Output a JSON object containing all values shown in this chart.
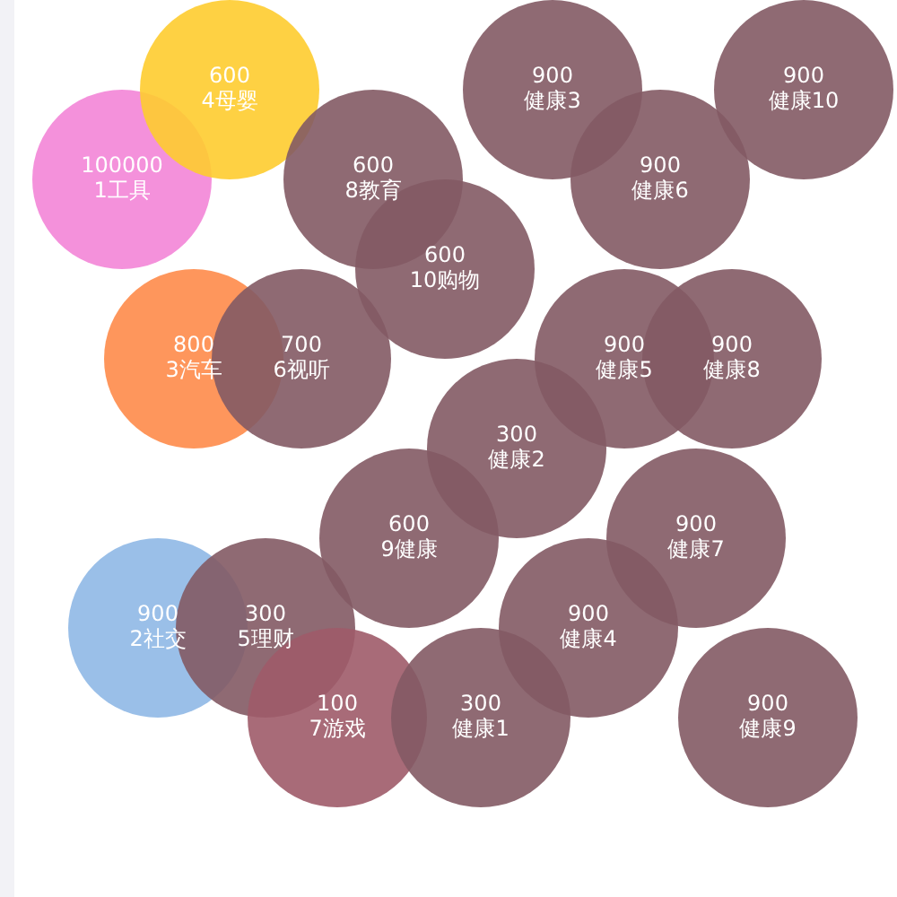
{
  "chart_data": {
    "type": "other",
    "data_labels": true,
    "categories": [
      "1工具",
      "2社交",
      "3汽车",
      "4母婴",
      "5理财",
      "6视听",
      "7游戏",
      "8教育",
      "9健康",
      "10购物",
      "健康1",
      "健康2",
      "健康3",
      "健康4",
      "健康5",
      "健康6",
      "健康7",
      "健康8",
      "健康9",
      "健康10"
    ],
    "values": [
      100000,
      900,
      800,
      600,
      300,
      700,
      100,
      600,
      600,
      600,
      300,
      300,
      900,
      900,
      900,
      900,
      900,
      900,
      900,
      900
    ],
    "colors": [
      "#f385d7",
      "#8fb8e6",
      "#fe8b4a",
      "#fecc2f",
      "#835a64",
      "#835a64",
      "#9f5b69",
      "#835a64",
      "#835a64",
      "#835a64",
      "#835a64",
      "#835a64",
      "#835a64",
      "#835a64",
      "#835a64",
      "#835a64",
      "#835a64",
      "#835a64",
      "#835a64",
      "#835a64"
    ]
  }
}
